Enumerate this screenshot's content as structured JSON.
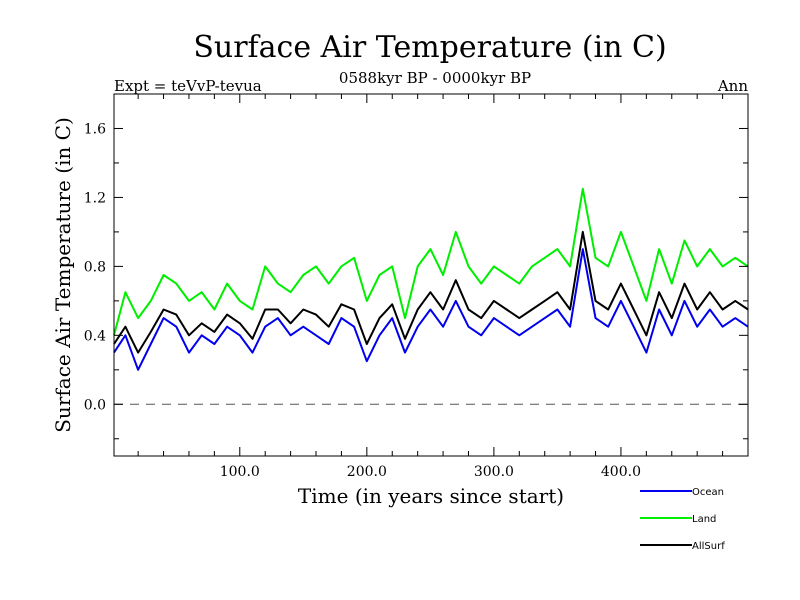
{
  "chart_data": {
    "type": "line",
    "title": "Surface Air Temperature (in C)",
    "subtitle": "0588kyr BP - 0000kyr BP",
    "top_left_label": "Expt = teVvP-tevua",
    "top_right_label": "Ann",
    "xlabel": "Time (in years since start)",
    "ylabel": "Surface Air Temperature (in C)",
    "xlim": [
      1,
      500
    ],
    "ylim": [
      -0.3,
      1.8
    ],
    "x_ticks": [
      100,
      200,
      300,
      400
    ],
    "x_tick_labels": [
      "100.0",
      "200.0",
      "300.0",
      "400.0"
    ],
    "y_ticks": [
      0.0,
      0.4,
      0.8,
      1.2,
      1.6
    ],
    "y_tick_labels": [
      "0.0",
      "0.4",
      "0.8",
      "1.2",
      "1.6"
    ],
    "zero_line": true,
    "legend_position": "bottom-right",
    "x": [
      1,
      10,
      20,
      30,
      40,
      50,
      60,
      70,
      80,
      90,
      100,
      110,
      120,
      130,
      140,
      150,
      160,
      170,
      180,
      190,
      200,
      210,
      220,
      230,
      240,
      250,
      260,
      270,
      280,
      290,
      300,
      310,
      320,
      330,
      340,
      350,
      360,
      370,
      380,
      390,
      400,
      410,
      420,
      430,
      440,
      450,
      460,
      470,
      480,
      490,
      500
    ],
    "series": [
      {
        "name": "Ocean",
        "color": "#0000ee",
        "values": [
          0.3,
          0.4,
          0.2,
          0.35,
          0.5,
          0.45,
          0.3,
          0.4,
          0.35,
          0.45,
          0.4,
          0.3,
          0.45,
          0.5,
          0.4,
          0.45,
          0.4,
          0.35,
          0.5,
          0.45,
          0.25,
          0.4,
          0.5,
          0.3,
          0.45,
          0.55,
          0.45,
          0.6,
          0.45,
          0.4,
          0.5,
          0.45,
          0.4,
          0.45,
          0.5,
          0.55,
          0.45,
          0.9,
          0.5,
          0.45,
          0.6,
          0.45,
          0.3,
          0.55,
          0.4,
          0.6,
          0.45,
          0.55,
          0.45,
          0.5,
          0.45
        ]
      },
      {
        "name": "Land",
        "color": "#00ee00",
        "values": [
          0.4,
          0.65,
          0.5,
          0.6,
          0.75,
          0.7,
          0.6,
          0.65,
          0.55,
          0.7,
          0.6,
          0.55,
          0.8,
          0.7,
          0.65,
          0.75,
          0.8,
          0.7,
          0.8,
          0.85,
          0.6,
          0.75,
          0.8,
          0.5,
          0.8,
          0.9,
          0.75,
          1.0,
          0.8,
          0.7,
          0.8,
          0.75,
          0.7,
          0.8,
          0.85,
          0.9,
          0.8,
          1.25,
          0.85,
          0.8,
          1.0,
          0.8,
          0.6,
          0.9,
          0.7,
          0.95,
          0.8,
          0.9,
          0.8,
          0.85,
          0.8
        ]
      },
      {
        "name": "AllSurf",
        "color": "#000000",
        "values": [
          0.35,
          0.45,
          0.3,
          0.42,
          0.55,
          0.52,
          0.4,
          0.47,
          0.42,
          0.52,
          0.47,
          0.38,
          0.55,
          0.55,
          0.47,
          0.55,
          0.52,
          0.45,
          0.58,
          0.55,
          0.35,
          0.5,
          0.58,
          0.38,
          0.55,
          0.65,
          0.55,
          0.72,
          0.55,
          0.5,
          0.6,
          0.55,
          0.5,
          0.55,
          0.6,
          0.65,
          0.55,
          1.0,
          0.6,
          0.55,
          0.7,
          0.55,
          0.4,
          0.65,
          0.5,
          0.7,
          0.55,
          0.65,
          0.55,
          0.6,
          0.55
        ]
      }
    ]
  }
}
